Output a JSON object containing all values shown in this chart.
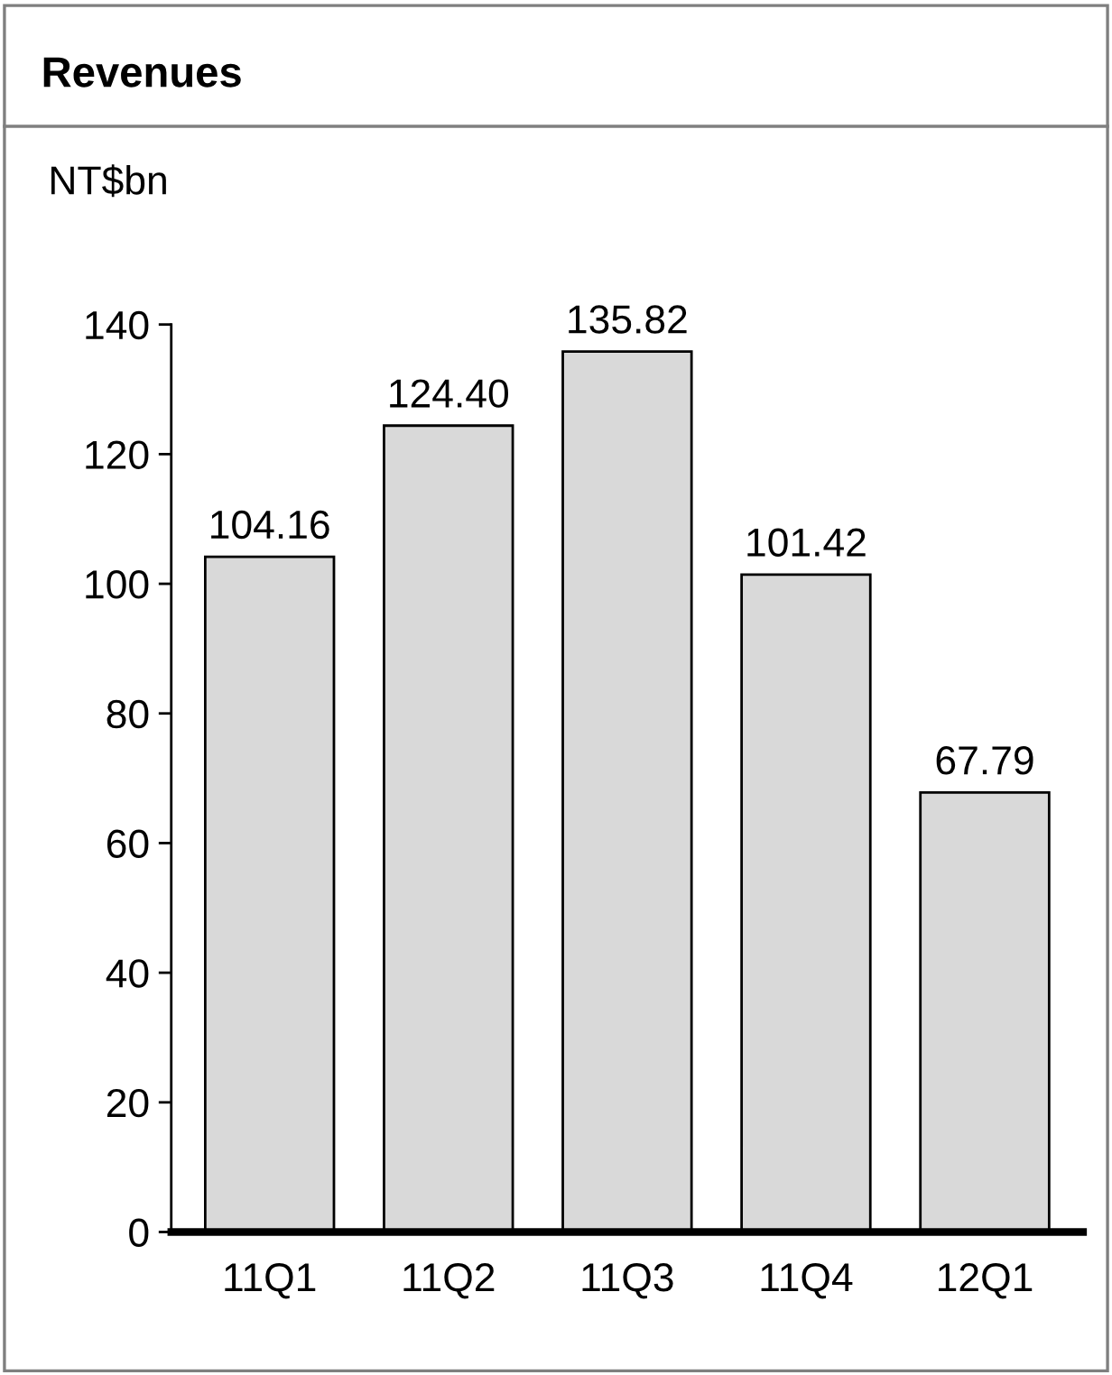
{
  "chart_data": {
    "type": "bar",
    "title": "Revenues",
    "ylabel": "NT$bn",
    "categories": [
      "11Q1",
      "11Q2",
      "11Q3",
      "11Q4",
      "12Q1"
    ],
    "values": [
      104.16,
      124.4,
      135.82,
      101.42,
      67.79
    ],
    "color": "#d9d9d9",
    "value_labels": [
      "104.16",
      "124.40",
      "135.82",
      "101.42",
      "67.79"
    ],
    "ylim": [
      0,
      140
    ],
    "yticks": [
      0,
      20,
      40,
      60,
      80,
      100,
      120,
      140
    ],
    "grid": false,
    "legend": false
  }
}
